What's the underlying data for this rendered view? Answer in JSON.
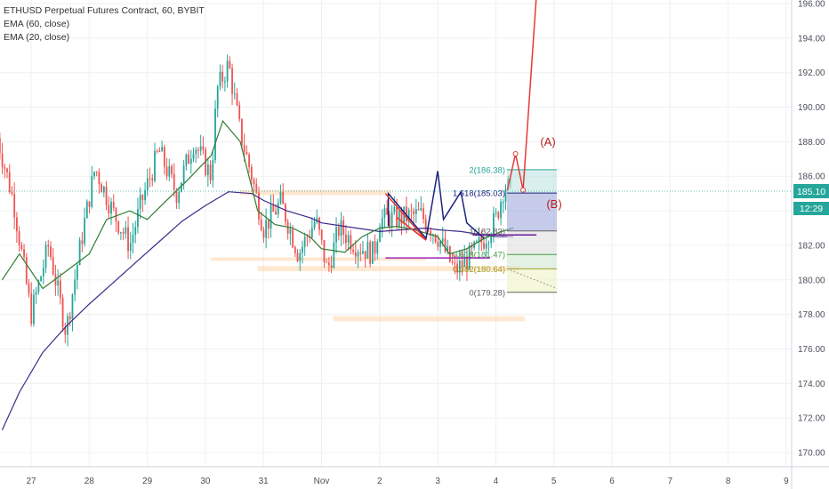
{
  "legend": {
    "symbol": "ETHUSD Perpetual Futures Contract, 60, BYBIT",
    "ema_slow": "EMA (60, close)",
    "ema_fast": "EMA (20, close)"
  },
  "price_axis": {
    "labels": [
      "196.00",
      "194.00",
      "192.00",
      "190.00",
      "188.00",
      "186.00",
      "184.00",
      "182.00",
      "180.00",
      "178.00",
      "176.00",
      "174.00",
      "172.00",
      "170.00"
    ],
    "last_price": "185.10",
    "countdown": "12:29"
  },
  "time_axis": {
    "labels": [
      "27",
      "28",
      "29",
      "30",
      "31",
      "Nov",
      "2",
      "3",
      "4",
      "5",
      "6",
      "7",
      "8",
      "9"
    ]
  },
  "colors": {
    "up": "#26a69a",
    "down": "#ef5350",
    "ema_slow": "#3f2a8c",
    "ema_fast": "#2e7d32",
    "projection": "#e53935",
    "pattern": "#1a237e",
    "last_price_bg": "#26a69a"
  },
  "annotations": {
    "wave_a": "(A)",
    "wave_b": "(B)"
  },
  "fib": {
    "labels": [
      "2(186.38)",
      "1.618(185.03)",
      "1(182.83)",
      "0.618(181.47)",
      "0.382(180.64)",
      "0(179.28)"
    ]
  },
  "chart_data": {
    "type": "candlestick",
    "title": "ETHUSD Perpetual Futures Contract, 60, BYBIT",
    "ylim": [
      169.5,
      196.2
    ],
    "y_ticks": [
      170,
      172,
      174,
      176,
      178,
      180,
      182,
      184,
      186,
      188,
      190,
      192,
      194,
      196
    ],
    "x_ticks": [
      "27",
      "28",
      "29",
      "30",
      "31",
      "Nov",
      "2",
      "3",
      "4",
      "5",
      "6",
      "7",
      "8",
      "9"
    ],
    "series": [
      {
        "name": "EMA (60, close)",
        "type": "line",
        "points": [
          [
            26.5,
            171.3
          ],
          [
            26.8,
            173.5
          ],
          [
            27.2,
            175.8
          ],
          [
            27.6,
            177.3
          ],
          [
            28,
            178.6
          ],
          [
            28.4,
            179.8
          ],
          [
            28.8,
            181.0
          ],
          [
            29.2,
            182.2
          ],
          [
            29.6,
            183.4
          ],
          [
            30,
            184.3
          ],
          [
            30.4,
            185.1
          ],
          [
            30.8,
            185.0
          ],
          [
            31,
            184.6
          ],
          [
            31.4,
            184.0
          ],
          [
            31.8,
            183.6
          ],
          [
            32,
            183.3
          ],
          [
            32.4,
            183.1
          ],
          [
            32.8,
            182.9
          ],
          [
            33,
            182.8
          ],
          [
            33.4,
            182.9
          ],
          [
            33.8,
            183.0
          ],
          [
            34,
            182.9
          ],
          [
            34.4,
            182.8
          ],
          [
            34.8,
            182.6
          ],
          [
            35,
            182.5
          ],
          [
            35.3,
            182.5
          ]
        ]
      },
      {
        "name": "EMA (20, close)",
        "type": "line",
        "points": [
          [
            26.5,
            180.0
          ],
          [
            26.8,
            181.5
          ],
          [
            27.2,
            179.5
          ],
          [
            27.6,
            180.5
          ],
          [
            28,
            181.5
          ],
          [
            28.3,
            183.5
          ],
          [
            28.7,
            184.0
          ],
          [
            29,
            183.5
          ],
          [
            29.3,
            184.5
          ],
          [
            29.7,
            185.8
          ],
          [
            30.1,
            187.2
          ],
          [
            30.3,
            189.2
          ],
          [
            30.6,
            188.0
          ],
          [
            30.9,
            184.0
          ],
          [
            31.2,
            183.2
          ],
          [
            31.5,
            183.0
          ],
          [
            31.8,
            182.5
          ],
          [
            32,
            181.8
          ],
          [
            32.4,
            181.6
          ],
          [
            32.7,
            182.5
          ],
          [
            33,
            183.0
          ],
          [
            33.3,
            183.1
          ],
          [
            33.6,
            182.9
          ],
          [
            34,
            182.5
          ],
          [
            34.2,
            181.5
          ],
          [
            34.5,
            181.8
          ],
          [
            34.8,
            182.4
          ],
          [
            35.1,
            182.8
          ],
          [
            35.3,
            183.0
          ]
        ]
      }
    ],
    "last_price": 185.1
  }
}
